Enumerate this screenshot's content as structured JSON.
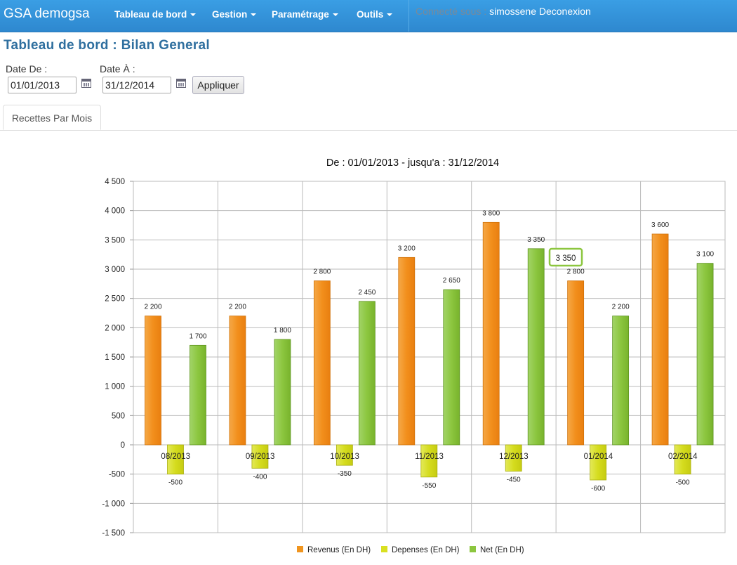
{
  "navbar": {
    "brand": "GSA demogsa",
    "menus": [
      "Tableau de bord",
      "Gestion",
      "Paramétrage",
      "Outils"
    ],
    "connected_label": "Connecté sous :",
    "user": "simossene",
    "logout": "Deconexion"
  },
  "page": {
    "title": "Tableau de bord : Bilan General"
  },
  "filters": {
    "date_from_label": "Date De :",
    "date_from_value": "01/01/2013",
    "date_to_label": "Date À :",
    "date_to_value": "31/12/2014",
    "apply_label": "Appliquer"
  },
  "tabs": [
    "Recettes Par Mois"
  ],
  "colors": {
    "navbar": "#2e88cf",
    "revenus": "#f0951f",
    "depenses": "#d9e021",
    "net": "#8cc63f"
  },
  "chart_data": {
    "type": "bar",
    "title": "De : 01/01/2013 - jusqu'a : 31/12/2014",
    "categories": [
      "08/2013",
      "09/2013",
      "10/2013",
      "11/2013",
      "12/2013",
      "01/2014",
      "02/2014"
    ],
    "series": [
      {
        "name": "Revenus (En DH)",
        "color": "#f0951f",
        "values": [
          2200,
          2200,
          2800,
          3200,
          3800,
          2800,
          3600
        ]
      },
      {
        "name": "Depenses (En DH)",
        "color": "#d9e021",
        "values": [
          -500,
          -400,
          -350,
          -550,
          -450,
          -600,
          -500
        ]
      },
      {
        "name": "Net (En DH)",
        "color": "#8cc63f",
        "values": [
          1700,
          1800,
          2450,
          2650,
          3350,
          2200,
          3100
        ]
      }
    ],
    "ylim": [
      -1500,
      4500
    ],
    "yticks": [
      "4 500",
      "4 000",
      "3 500",
      "3 000",
      "2 500",
      "2 000",
      "1 500",
      "1 000",
      "500",
      "0",
      "-500",
      "-1 000",
      "-1 500"
    ],
    "grid": true,
    "legend_position": "bottom",
    "tooltip": "3 350"
  }
}
